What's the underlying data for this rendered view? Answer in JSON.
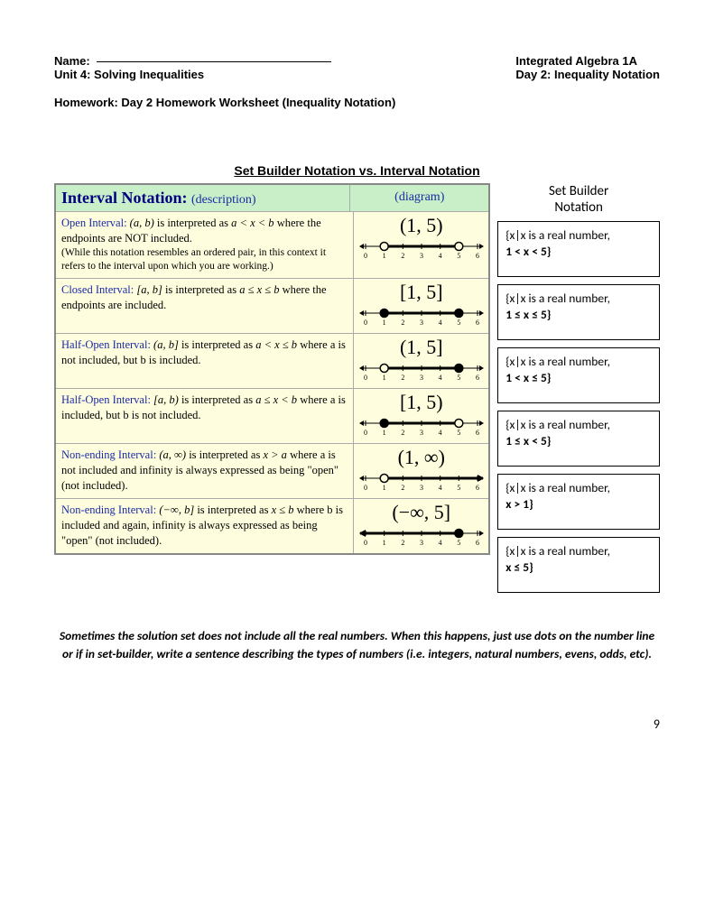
{
  "header": {
    "name_label": "Name:",
    "unit_label": "Unit 4:  Solving Inequalities",
    "course": "Integrated Algebra 1A",
    "day": "Day 2: Inequality Notation",
    "homework": "Homework: Day 2 Homework Worksheet (Inequality Notation)"
  },
  "section_title": "Set Builder Notation vs. Interval Notation",
  "table_header": {
    "title": "Interval Notation:",
    "desc": "(description)",
    "diagram": "(diagram)"
  },
  "right_title_line1": "Set Builder",
  "right_title_line2": "Notation",
  "rows": [
    {
      "lead": "Open Interval:",
      "expr": "(a, b)",
      "body1": " is interpreted as ",
      "ineq": "a < x < b",
      "body2": " where the endpoints are NOT included.",
      "note": "(While this notation resembles an ordered pair, in this context it refers to the interval upon which you are working.)",
      "interval": "(1, 5)",
      "diagram": {
        "left_open": true,
        "right_open": true,
        "a": 1,
        "b": 5,
        "left_arrow": false,
        "right_arrow": false
      },
      "sb_line1": "{x|x is a real number,",
      "sb_line2": "1  <  x  <  5}"
    },
    {
      "lead": "Closed Interval:",
      "expr": "[a, b]",
      "body1": " is interpreted as ",
      "ineq": "a ≤ x ≤ b",
      "body2": " where the endpoints are included.",
      "note": "",
      "interval": "[1, 5]",
      "diagram": {
        "left_open": false,
        "right_open": false,
        "a": 1,
        "b": 5,
        "left_arrow": false,
        "right_arrow": false
      },
      "sb_line1": "{x|x is a real number,",
      "sb_line2": " 1 ≤  x  ≤ 5}"
    },
    {
      "lead": "Half-Open Interval:",
      "expr": "(a, b]",
      "body1": " is interpreted as ",
      "ineq": "a < x ≤ b",
      "body2": " where a is not included, but b is included.",
      "note": "",
      "interval": "(1, 5]",
      "diagram": {
        "left_open": true,
        "right_open": false,
        "a": 1,
        "b": 5,
        "left_arrow": false,
        "right_arrow": false
      },
      "sb_line1": "{x|x is a real number,",
      "sb_line2": "1 <  x  ≤ 5}"
    },
    {
      "lead": "Half-Open Interval:",
      "expr": "[a, b)",
      "body1": " is interpreted as ",
      "ineq": "a ≤ x < b",
      "body2": " where a is included, but b is not included.",
      "note": "",
      "interval": "[1, 5)",
      "diagram": {
        "left_open": false,
        "right_open": true,
        "a": 1,
        "b": 5,
        "left_arrow": false,
        "right_arrow": false
      },
      "sb_line1": "{x|x is a real number,",
      "sb_line2": "1 ≤ x < 5}"
    },
    {
      "lead": "Non-ending Interval:",
      "expr": "(a, ∞)",
      "body1": " is interpreted as ",
      "ineq": "x > a",
      "body2": " where a is not included and infinity is always expressed as being \"open\" (not included).",
      "note": "",
      "interval": "(1, ∞)",
      "diagram": {
        "left_open": true,
        "right_open": true,
        "a": 1,
        "b": 6,
        "left_arrow": false,
        "right_arrow": true
      },
      "sb_line1": "{x|x is a real number,",
      "sb_line2": "x  >  1}"
    },
    {
      "lead": "Non-ending Interval:",
      "expr": "(−∞, b]",
      "body1": " is interpreted as ",
      "ineq": "x ≤ b",
      "body2": " where b is included and again, infinity is always expressed as being \"open\" (not included).",
      "note": "",
      "interval": "(−∞, 5]",
      "diagram": {
        "left_open": true,
        "right_open": false,
        "a": 0,
        "b": 5,
        "left_arrow": true,
        "right_arrow": false
      },
      "sb_line1": "{x|x is a real number,",
      "sb_line2": " x  ≤ 5}"
    }
  ],
  "footnote": "Sometimes the solution set does not include all the real numbers. When this happens, just use dots on the number line or if in set-builder, write a sentence describing the types of numbers  (i.e. integers, natural numbers, evens, odds, etc).",
  "page_number": "9",
  "numline": {
    "min": 0,
    "max": 6,
    "width": 140,
    "height": 30,
    "xpad": 8
  }
}
